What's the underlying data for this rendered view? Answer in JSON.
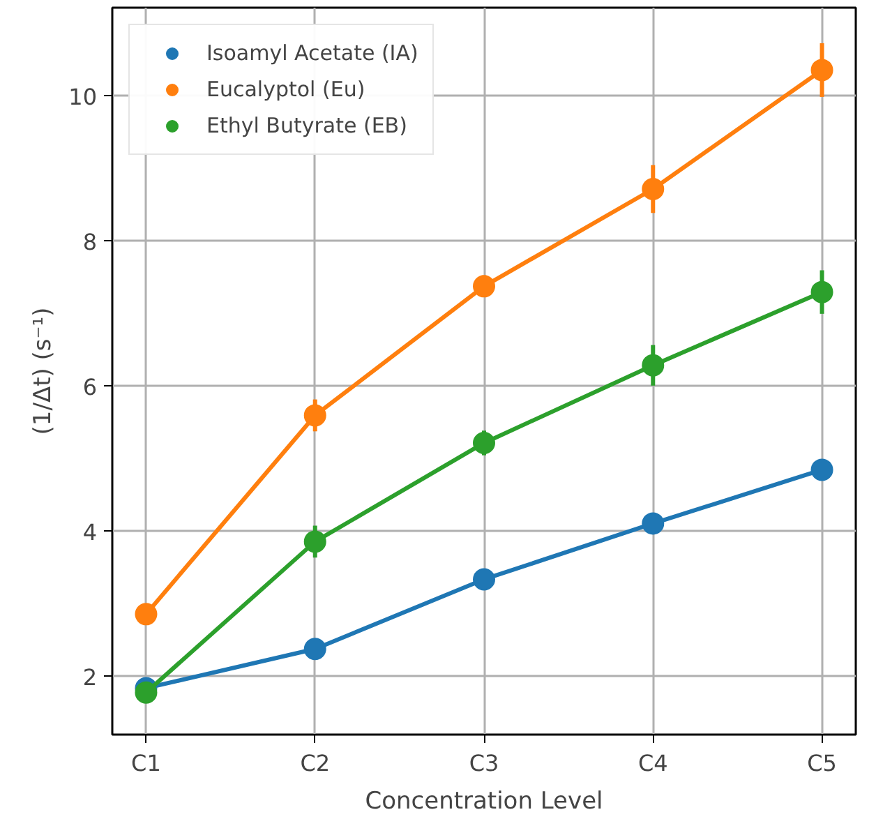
{
  "chart_data": {
    "type": "line",
    "xlabel": "Concentration Level",
    "ylabel": "(1/Δt) (s⁻¹)",
    "categories": [
      "C1",
      "C2",
      "C3",
      "C4",
      "C5"
    ],
    "series": [
      {
        "name": "Isoamyl Acetate (IA)",
        "color": "#1f77b4",
        "values": [
          1.84,
          2.38,
          3.34,
          4.11,
          4.85
        ],
        "errors": [
          null,
          null,
          null,
          0.08,
          null
        ]
      },
      {
        "name": "Eucalyptol (Eu)",
        "color": "#ff7f0e",
        "values": [
          2.86,
          5.6,
          7.38,
          8.72,
          10.36
        ],
        "errors": [
          null,
          0.22,
          0.15,
          0.33,
          0.37
        ]
      },
      {
        "name": "Ethyl Butyrate (EB)",
        "color": "#2ca02c",
        "values": [
          1.78,
          3.86,
          5.22,
          6.29,
          7.3
        ],
        "errors": [
          null,
          0.22,
          0.17,
          0.28,
          0.3
        ]
      }
    ],
    "ylim": [
      1.2,
      11.22
    ],
    "yticks": [
      2,
      4,
      6,
      8,
      10
    ],
    "grid": true,
    "legend": "top left",
    "marker": "circle",
    "line_style": "solid"
  }
}
